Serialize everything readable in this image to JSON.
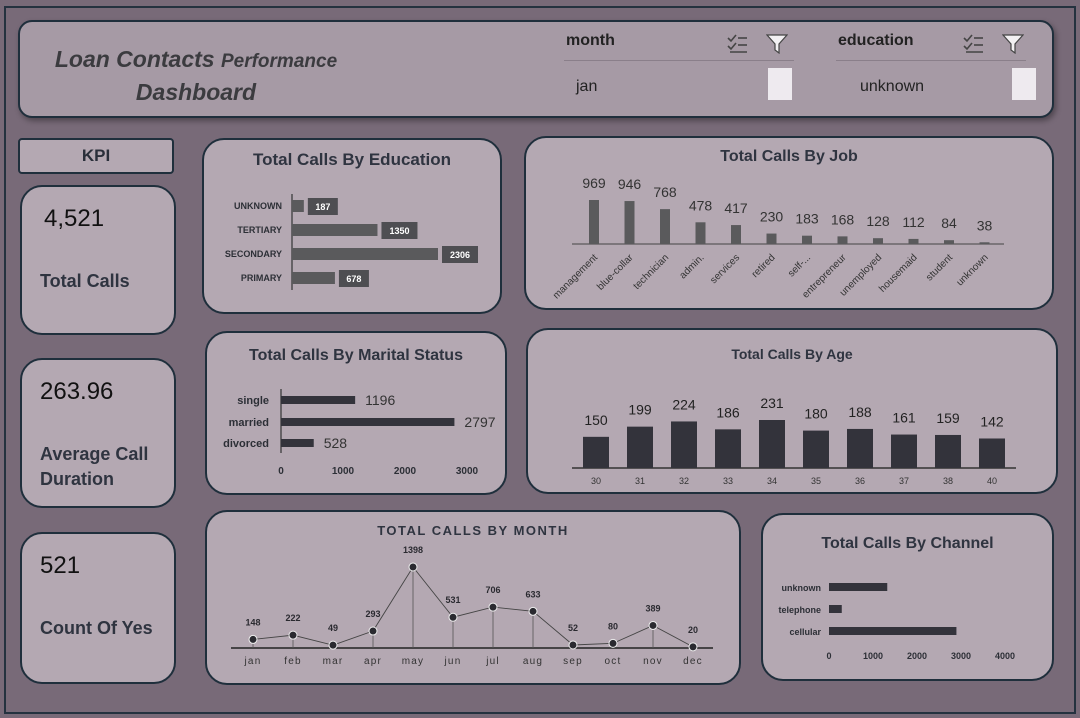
{
  "header": {
    "title_line1_main": "Loan Contacts",
    "title_line1_small": "Performance",
    "title_line2": "Dashboard"
  },
  "slicers": [
    {
      "label": "month",
      "value": "jan"
    },
    {
      "label": "education",
      "value": "unknown"
    }
  ],
  "kpi": {
    "label": "KPI",
    "cards": [
      {
        "value": "4,521",
        "label": "Total Calls"
      },
      {
        "value": "263.96",
        "label": "Average Call Duration"
      },
      {
        "value": "521",
        "label": "Count Of Yes"
      }
    ]
  },
  "colors": {
    "background": "#786a78",
    "panel": "#b4a8b2",
    "bar_gray": "#5a5a5c",
    "bar_dark": "#33333b",
    "border": "#1f2f3c"
  },
  "chart_data": [
    {
      "id": "education",
      "type": "bar",
      "orientation": "horizontal",
      "title": "Total Calls By Education",
      "categories": [
        "UNKNOWN",
        "TERTIARY",
        "SECONDARY",
        "PRIMARY"
      ],
      "values": [
        187,
        1350,
        2306,
        678
      ],
      "data_labels": [
        "187",
        "1350",
        "2306",
        "678"
      ]
    },
    {
      "id": "job",
      "type": "bar",
      "title": "Total Calls By Job",
      "categories": [
        "management",
        "blue-collar",
        "technician",
        "admin.",
        "services",
        "retired",
        "self-...",
        "entrepreneur",
        "unemployed",
        "housemaid",
        "student",
        "unknown"
      ],
      "values": [
        969,
        946,
        768,
        478,
        417,
        230,
        183,
        168,
        128,
        112,
        84,
        38
      ],
      "data_labels": [
        "969",
        "946",
        "768",
        "478",
        "417",
        "230",
        "183",
        "168",
        "128",
        "112",
        "84",
        "38"
      ]
    },
    {
      "id": "marital",
      "type": "bar",
      "orientation": "horizontal",
      "title": "Total Calls By Marital Status",
      "categories": [
        "single",
        "married",
        "divorced"
      ],
      "values": [
        1196,
        2797,
        528
      ],
      "data_labels": [
        "1196",
        "2797",
        "528"
      ],
      "x_ticks": [
        "0",
        "1000",
        "2000",
        "3000"
      ],
      "xlim": [
        0,
        3000
      ]
    },
    {
      "id": "age",
      "type": "bar",
      "title": "Total Calls By Age",
      "categories": [
        "30",
        "31",
        "32",
        "33",
        "34",
        "35",
        "36",
        "37",
        "38",
        "40"
      ],
      "values": [
        150,
        199,
        224,
        186,
        231,
        180,
        188,
        161,
        159,
        142
      ],
      "data_labels": [
        "150",
        "199",
        "224",
        "186",
        "231",
        "180",
        "188",
        "161",
        "159",
        "142"
      ]
    },
    {
      "id": "month",
      "type": "line",
      "title": "TOTAL CALLS BY MONTH",
      "categories": [
        "jan",
        "feb",
        "mar",
        "apr",
        "may",
        "jun",
        "jul",
        "aug",
        "sep",
        "oct",
        "nov",
        "dec"
      ],
      "values": [
        148,
        222,
        49,
        293,
        1398,
        531,
        706,
        633,
        52,
        80,
        389,
        20
      ],
      "data_labels": [
        "148",
        "222",
        "49",
        "293",
        "1398",
        "531",
        "706",
        "633",
        "52",
        "80",
        "389",
        "20"
      ]
    },
    {
      "id": "channel",
      "type": "bar",
      "orientation": "horizontal",
      "title": "Total Calls By Channel",
      "categories": [
        "unknown",
        "telephone",
        "cellular"
      ],
      "values": [
        1324,
        290,
        2896
      ],
      "x_ticks": [
        "0",
        "1000",
        "2000",
        "3000",
        "4000"
      ],
      "xlim": [
        0,
        4000
      ]
    }
  ]
}
